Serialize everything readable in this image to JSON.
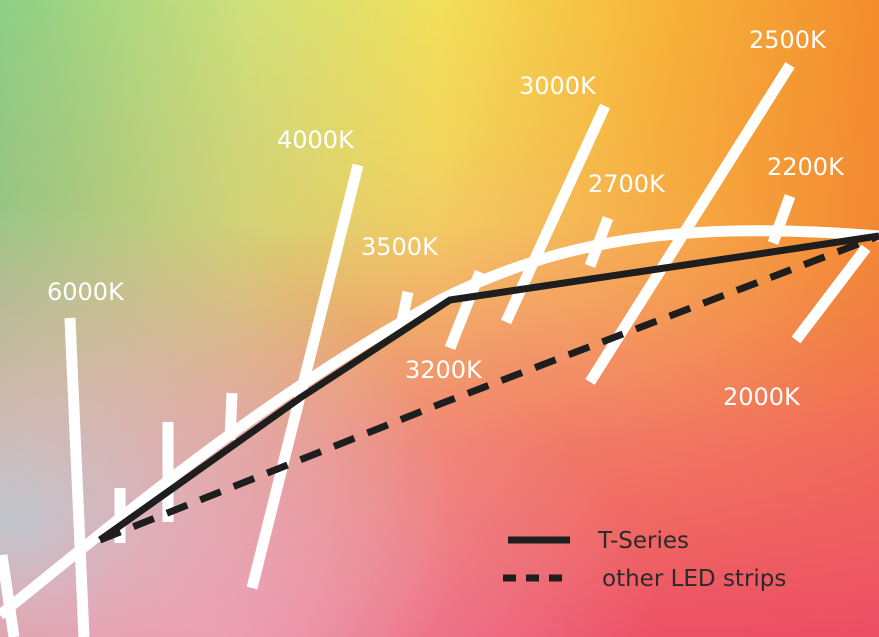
{
  "cct_labels": {
    "k6000": "6000K",
    "k4000": "4000K",
    "k3500": "3500K",
    "k3200": "3200K",
    "k3000": "3000K",
    "k2700": "2700K",
    "k2500": "2500K",
    "k2200": "2200K",
    "k2000": "2000K"
  },
  "legend": {
    "t_series": "T-Series",
    "other": "other LED strips"
  },
  "colors": {
    "locus": "#ffffff",
    "t_series": "#1e1e1e",
    "other": "#1e1e1e"
  }
}
